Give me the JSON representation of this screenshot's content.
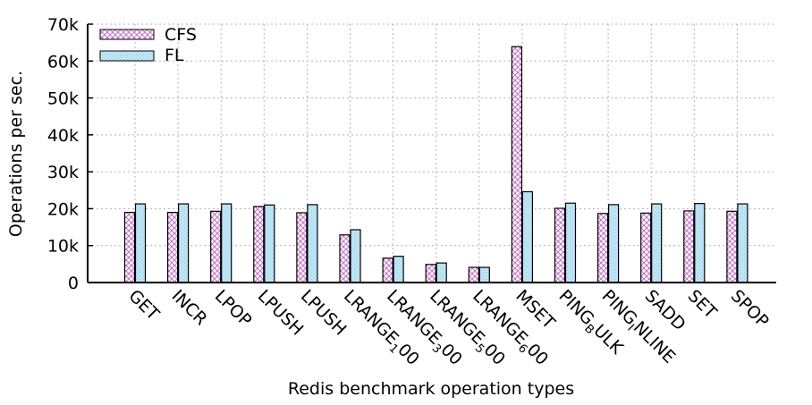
{
  "chart_data": {
    "type": "bar",
    "title": "",
    "xlabel": "Redis benchmark operation types",
    "ylabel": "Operations per sec.",
    "ylim": [
      0,
      70000
    ],
    "yticks": [
      0,
      10000,
      20000,
      30000,
      40000,
      50000,
      60000,
      70000
    ],
    "ytick_labels": [
      "0",
      "10k",
      "20k",
      "30k",
      "40k",
      "50k",
      "60k",
      "70k"
    ],
    "grid": true,
    "legend_position": "top-left",
    "categories": [
      {
        "label": "GET"
      },
      {
        "label": "INCR"
      },
      {
        "label": "LPOP"
      },
      {
        "label": "LPUSH"
      },
      {
        "label": "LPUSH"
      },
      {
        "label": "LRANGE",
        "sub": "1",
        "tail": "00"
      },
      {
        "label": "LRANGE",
        "sub": "3",
        "tail": "00"
      },
      {
        "label": "LRANGE",
        "sub": "5",
        "tail": "00"
      },
      {
        "label": "LRANGE",
        "sub": "6",
        "tail": "00"
      },
      {
        "label": "MSET"
      },
      {
        "label": "PING",
        "sub": "B",
        "tail": "ULK"
      },
      {
        "label": "PING",
        "sub": "I",
        "tail": "NLINE"
      },
      {
        "label": "SADD"
      },
      {
        "label": "SET"
      },
      {
        "label": "SPOP"
      }
    ],
    "series": [
      {
        "name": "CFS",
        "color": "#c86bc8",
        "pattern": "crosshatch",
        "values": [
          19000,
          19000,
          19300,
          20600,
          18900,
          12900,
          6600,
          4900,
          4100,
          63900,
          20100,
          18700,
          18800,
          19400,
          19300
        ]
      },
      {
        "name": "FL",
        "color": "#bfe6f5",
        "pattern": "light-dots",
        "values": [
          21300,
          21300,
          21300,
          21000,
          21100,
          14300,
          7100,
          5300,
          4100,
          24600,
          21500,
          21100,
          21300,
          21400,
          21300
        ]
      }
    ]
  }
}
